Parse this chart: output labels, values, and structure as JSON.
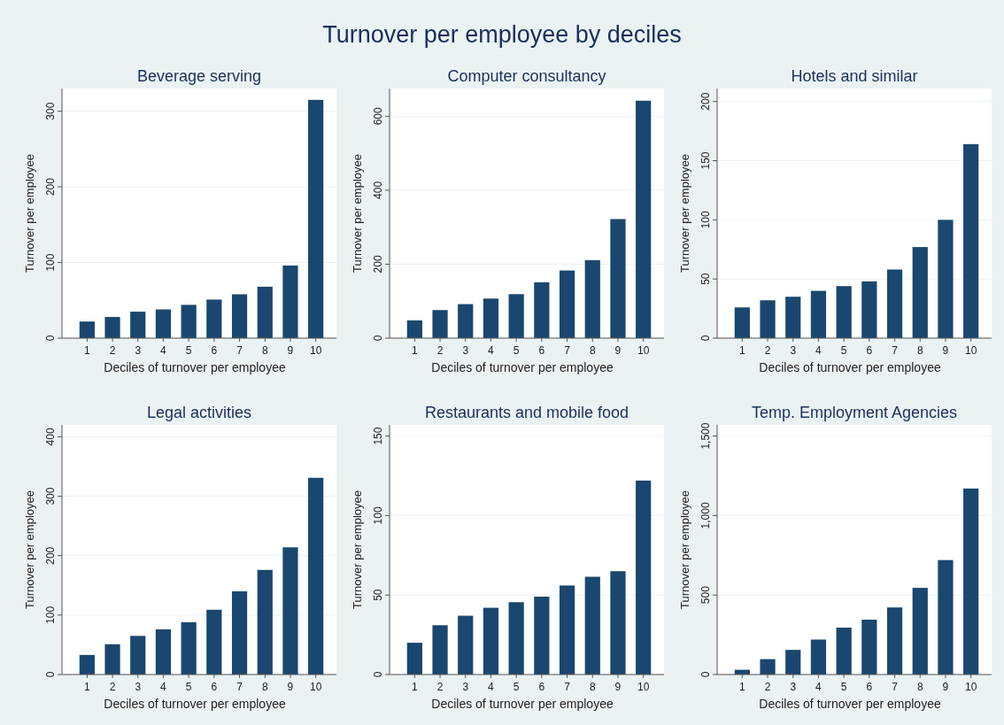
{
  "chart_data": [
    {
      "type": "other",
      "title": "Turnover per employee by deciles"
    },
    {
      "type": "bar",
      "title": "Beverage serving",
      "xlabel": "Deciles of turnover per employee",
      "ylabel": "Turnover per employee",
      "color": "#1a476f",
      "grid": "y",
      "categories": [
        "1",
        "2",
        "3",
        "4",
        "5",
        "6",
        "7",
        "8",
        "9",
        "10"
      ],
      "values": [
        22,
        28,
        35,
        38,
        44,
        51,
        58,
        68,
        96,
        315
      ],
      "ylim": [
        0,
        330
      ],
      "yticks": [
        0,
        100,
        200,
        300
      ]
    },
    {
      "type": "bar",
      "title": "Computer consultancy",
      "xlabel": "Deciles of turnover per employee",
      "ylabel": "Turnover per employee",
      "color": "#1a476f",
      "grid": "y",
      "categories": [
        "1",
        "2",
        "3",
        "4",
        "5",
        "6",
        "7",
        "8",
        "9",
        "10"
      ],
      "values": [
        48,
        76,
        92,
        107,
        119,
        151,
        183,
        211,
        322,
        642
      ],
      "ylim": [
        0,
        675
      ],
      "yticks": [
        0,
        200,
        400,
        600
      ]
    },
    {
      "type": "bar",
      "title": "Hotels and similar",
      "xlabel": "Deciles of turnover per employee",
      "ylabel": "Turnover per employee",
      "color": "#1a476f",
      "grid": "y",
      "categories": [
        "1",
        "2",
        "3",
        "4",
        "5",
        "6",
        "7",
        "8",
        "9",
        "10"
      ],
      "values": [
        26,
        32,
        35,
        40,
        44,
        48,
        58,
        77,
        100,
        164
      ],
      "ylim": [
        0,
        211
      ],
      "yticks": [
        0,
        50,
        100,
        150,
        200
      ]
    },
    {
      "type": "bar",
      "title": "Legal activities",
      "xlabel": "Deciles of turnover per employee",
      "ylabel": "Turnover per employee",
      "color": "#1a476f",
      "grid": "y",
      "categories": [
        "1",
        "2",
        "3",
        "4",
        "5",
        "6",
        "7",
        "8",
        "9",
        "10"
      ],
      "values": [
        33,
        51,
        65,
        76,
        88,
        109,
        140,
        176,
        214,
        331
      ],
      "ylim": [
        0,
        420
      ],
      "yticks": [
        0,
        100,
        200,
        300,
        400
      ]
    },
    {
      "type": "bar",
      "title": "Restaurants and mobile food",
      "xlabel": "Deciles of turnover per employee",
      "ylabel": "Turnover per employee",
      "color": "#1a476f",
      "grid": "y",
      "categories": [
        "1",
        "2",
        "3",
        "4",
        "5",
        "6",
        "7",
        "8",
        "9",
        "10"
      ],
      "values": [
        20,
        31,
        37,
        42,
        45.5,
        49,
        56,
        61.5,
        65,
        122
      ],
      "ylim": [
        0,
        157
      ],
      "yticks": [
        0,
        50,
        100,
        150
      ]
    },
    {
      "type": "bar",
      "title": "Temp. Employment Agencies",
      "xlabel": "Deciles of turnover per employee",
      "ylabel": "Turnover per employee",
      "color": "#1a476f",
      "grid": "y",
      "categories": [
        "1",
        "2",
        "3",
        "4",
        "5",
        "6",
        "7",
        "8",
        "9",
        "10"
      ],
      "values": [
        30,
        97,
        155,
        220,
        295,
        345,
        422,
        545,
        720,
        1170
      ],
      "ylim": [
        0,
        1570
      ],
      "yticks": [
        0,
        500,
        {
          "value": 1000,
          "label": "1,000"
        },
        {
          "value": 1500,
          "label": "1,500"
        }
      ]
    }
  ]
}
